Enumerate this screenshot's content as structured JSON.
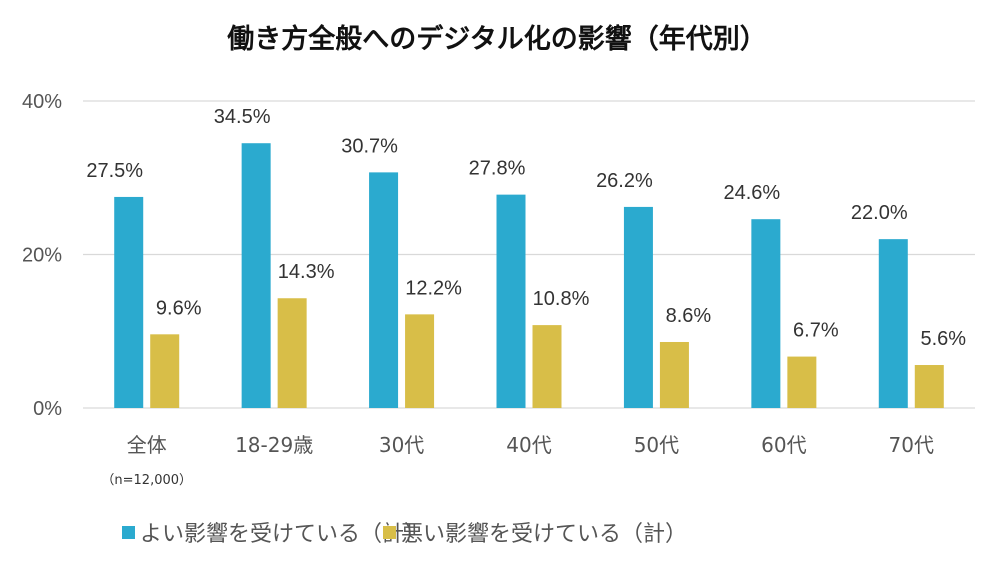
{
  "chart_data": {
    "type": "bar",
    "title": "働き方全般へのデジタル化の影響（年代別）",
    "xlabel": "",
    "ylabel": "",
    "ylim": [
      0,
      40
    ],
    "yticks": [
      0,
      20,
      40
    ],
    "ytick_labels": [
      "0%",
      "20%",
      "40%"
    ],
    "grid": true,
    "legend_position": "bottom",
    "categories": [
      "全体",
      "18-29歳",
      "30代",
      "40代",
      "50代",
      "60代",
      "70代"
    ],
    "category_notes": [
      "（n=12,000）",
      "",
      "",
      "",
      "",
      "",
      ""
    ],
    "series": [
      {
        "name": "よい影響を受けている（計）",
        "color": "#2BAACF",
        "values": [
          27.5,
          34.5,
          30.7,
          27.8,
          26.2,
          24.6,
          22.0
        ],
        "labels": [
          "27.5%",
          "34.5%",
          "30.7%",
          "27.8%",
          "26.2%",
          "24.6%",
          "22.0%"
        ]
      },
      {
        "name": "悪い影響を受けている（計）",
        "color": "#D8BE48",
        "values": [
          9.6,
          14.3,
          12.2,
          10.8,
          8.6,
          6.7,
          5.6
        ],
        "labels": [
          "9.6%",
          "14.3%",
          "12.2%",
          "10.8%",
          "8.6%",
          "6.7%",
          "5.6%"
        ]
      }
    ],
    "gridline_color": "#D9D9D9"
  }
}
